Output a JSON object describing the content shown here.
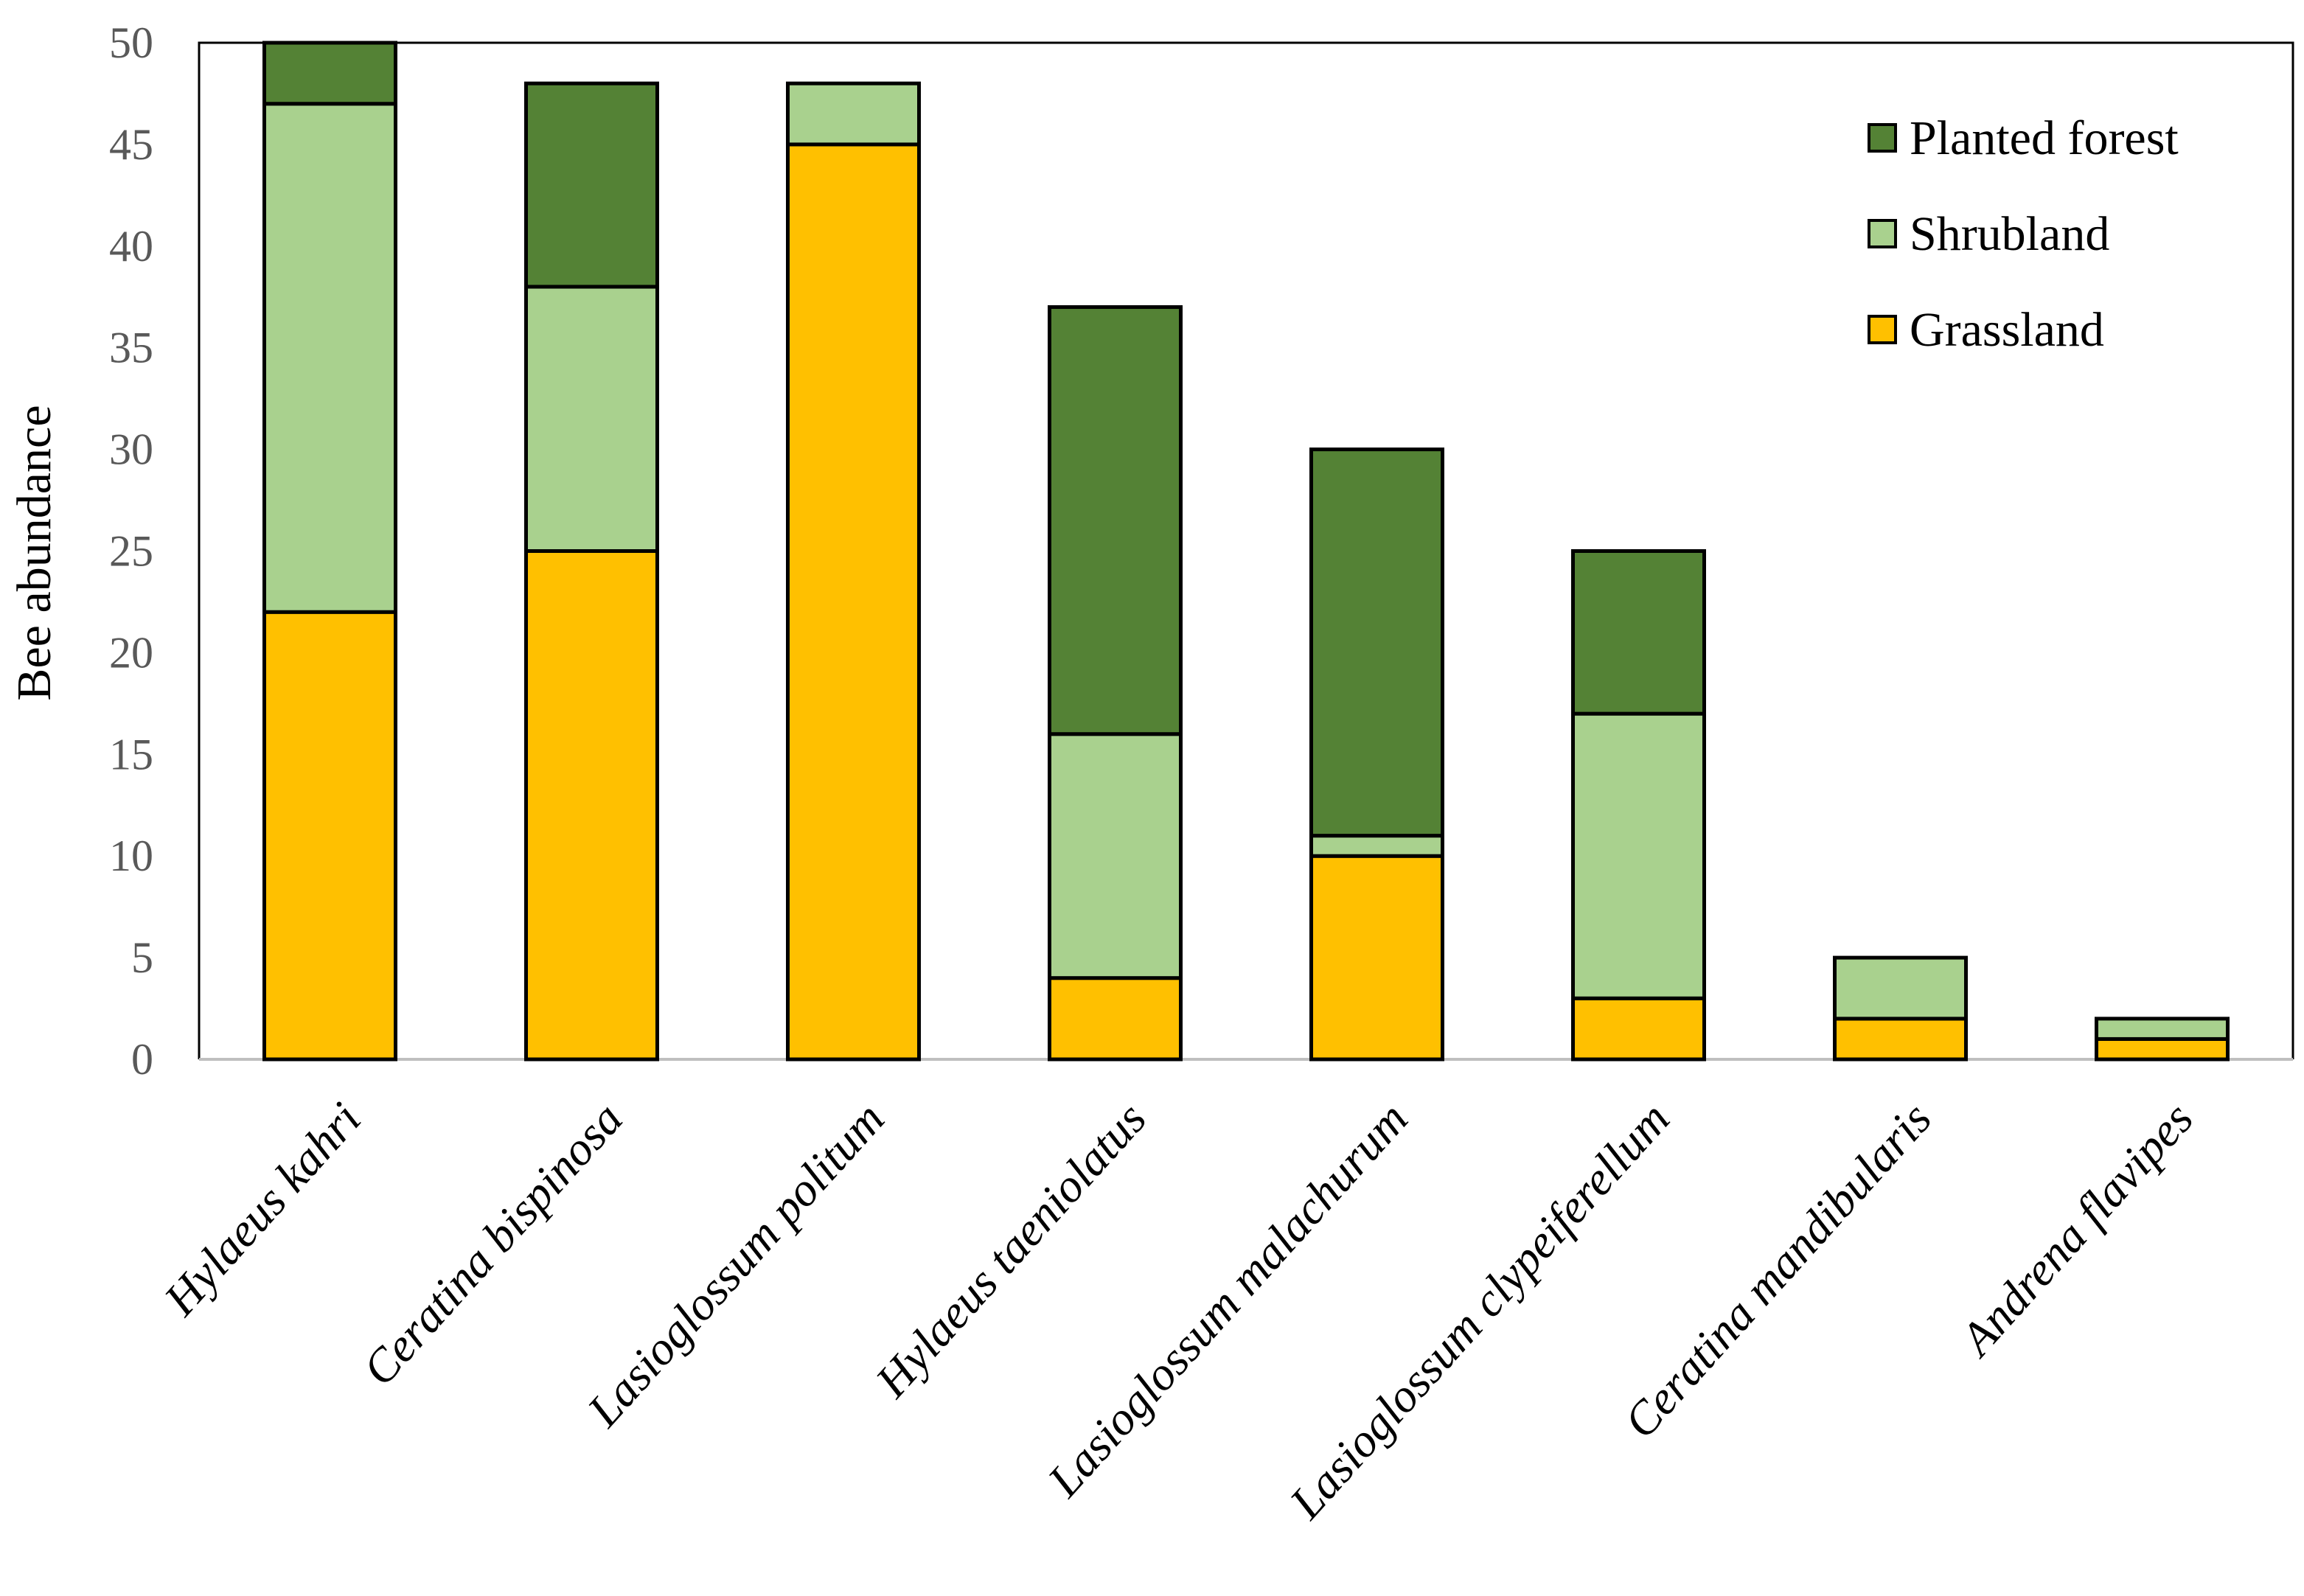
{
  "chart_data": {
    "type": "bar",
    "stacked": true,
    "title": "",
    "xlabel": "",
    "ylabel": "Bee abundance",
    "ylim": [
      0,
      50
    ],
    "yticks": [
      0,
      5,
      10,
      15,
      20,
      25,
      30,
      35,
      40,
      45,
      50
    ],
    "categories": [
      "Hylaeus kahri",
      "Ceratina bispinosa",
      "Lasioglossum politum",
      "Hylaeus taeniolatus",
      "Lasioglossum malachurum",
      "Lasioglossum clypeiferellum",
      "Ceratina mandibularis",
      "Andrena flavipes"
    ],
    "series": [
      {
        "name": "Grassland",
        "color": "#FFC000",
        "values": [
          22,
          25,
          45,
          4,
          10,
          3,
          2,
          1
        ]
      },
      {
        "name": "Shrubland",
        "color": "#A9D18E",
        "values": [
          25,
          13,
          3,
          12,
          1,
          14,
          3,
          1
        ]
      },
      {
        "name": "Planted forest",
        "color": "#548235",
        "values": [
          3,
          10,
          0,
          21,
          19,
          8,
          0,
          0
        ]
      }
    ],
    "legend": {
      "position": "top-right",
      "order": [
        "Planted forest",
        "Shrubland",
        "Grassland"
      ]
    },
    "grid": false
  }
}
